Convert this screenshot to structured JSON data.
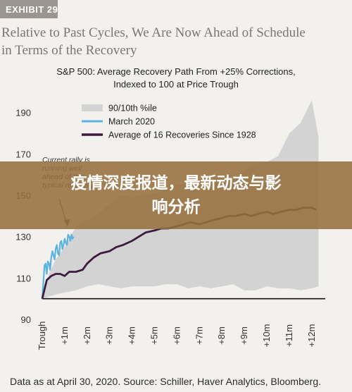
{
  "badge": "EXHIBIT 29",
  "exhibit_title_lines": [
    "Relative to Past Cycles, We Are Now Ahead of Schedule",
    "in Terms of the Recovery"
  ],
  "banner_lines": [
    "疫情深度报道，最新动态与影",
    "响分析"
  ],
  "footnote": "Data as at April 30, 2020. Source: Schiller, Haver Analytics, Bloomberg.",
  "colors": {
    "band": "#d3d3d3",
    "march2020": "#5bb3e0",
    "average": "#3e1a3e",
    "baseline": "#111111"
  },
  "chart_data": {
    "type": "line",
    "title_lines": [
      "S&P 500: Average Recovery Path From +25% Corrections,",
      "Indexed to 100 at Price Trough"
    ],
    "xlabel": "",
    "ylabel": "",
    "x_ticks": [
      "Trough",
      "+1m",
      "+2m",
      "+3m",
      "+4m",
      "+5m",
      "+6m",
      "+7m",
      "+8m",
      "+9m",
      "+10m",
      "+11m",
      "+12m"
    ],
    "y_ticks": [
      90,
      110,
      130,
      150,
      170,
      190
    ],
    "ylim": [
      90,
      194
    ],
    "xlim": [
      0,
      12.6
    ],
    "grid": false,
    "legend_position": "top-center",
    "baseline": 100,
    "annotation": {
      "text_lines": [
        "Current rally is",
        "running well",
        "ahead of the",
        "typical recovery"
      ]
    },
    "band": {
      "name": "90/10th %ile",
      "x": [
        0,
        0.3,
        0.6,
        1.0,
        1.5,
        2.0,
        2.5,
        3.0,
        3.5,
        4.0,
        4.5,
        5.0,
        5.5,
        6.0,
        6.5,
        7.0,
        7.5,
        8.0,
        8.5,
        9.0,
        9.5,
        10.0,
        10.5,
        11.0,
        11.5,
        12.0,
        12.3
      ],
      "upper": [
        100,
        112,
        119,
        125,
        135,
        138,
        141,
        146,
        150,
        149,
        150,
        151,
        153,
        155,
        156,
        157,
        157,
        159,
        158,
        162,
        165,
        166,
        169,
        180,
        185,
        196,
        178
      ],
      "lower": [
        100,
        101,
        102,
        103,
        104,
        106,
        107,
        106,
        105,
        106,
        106,
        106,
        107,
        107,
        105,
        106,
        105,
        106,
        107,
        104,
        104,
        106,
        105,
        105,
        104,
        105,
        106
      ]
    },
    "series": [
      {
        "name": "March 2020",
        "x": [
          0,
          0.05,
          0.1,
          0.15,
          0.2,
          0.25,
          0.3,
          0.35,
          0.4,
          0.45,
          0.5,
          0.55,
          0.6,
          0.65,
          0.7,
          0.75,
          0.8,
          0.85,
          0.9,
          0.95,
          1.0,
          1.05,
          1.1,
          1.15,
          1.2,
          1.25,
          1.3,
          1.35,
          1.4
        ],
        "values": [
          100,
          108,
          116,
          117,
          112,
          118,
          117,
          114,
          120,
          123,
          121,
          119,
          124,
          126,
          122,
          121,
          127,
          128,
          124,
          126,
          129,
          127,
          126,
          131,
          130,
          128,
          131,
          129,
          130
        ]
      },
      {
        "name": "Average of 16 Recoveries Since 1928",
        "x": [
          0,
          0.2,
          0.4,
          0.6,
          0.8,
          1.0,
          1.2,
          1.5,
          1.8,
          2.0,
          2.3,
          2.6,
          3.0,
          3.3,
          3.6,
          4.0,
          4.3,
          4.6,
          5.0,
          5.3,
          5.6,
          6.0,
          6.3,
          6.6,
          7.0,
          7.3,
          7.6,
          8.0,
          8.3,
          8.6,
          9.0,
          9.3,
          9.6,
          10.0,
          10.3,
          10.6,
          11.0,
          11.3,
          11.6,
          12.0,
          12.2
        ],
        "values": [
          100,
          109,
          111,
          112,
          112,
          111,
          113,
          113,
          114,
          117,
          120,
          122,
          123,
          125,
          126,
          128,
          130,
          132,
          133,
          134,
          134,
          135,
          136,
          137,
          136,
          137,
          138,
          139,
          140,
          140,
          141,
          140,
          141,
          142,
          141,
          142,
          143,
          143,
          144,
          144,
          143
        ]
      }
    ]
  }
}
